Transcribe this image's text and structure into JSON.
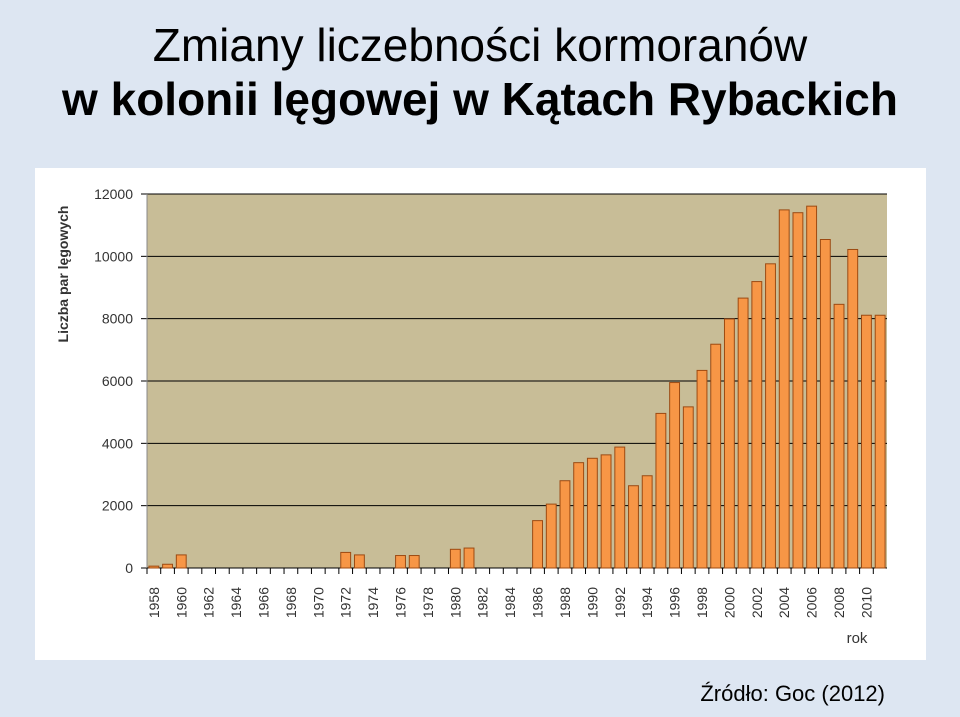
{
  "title": {
    "line1": "Zmiany liczebności kormoranów",
    "line2": "w kolonii lęgowej w Kątach Rybackich"
  },
  "source": "Źródło: Goc (2012)",
  "colors": {
    "background": "#dde6f2",
    "plot_area": "#c8bd97",
    "bar_fill": "#f79646",
    "bar_stroke": "#9c4a12",
    "grid": "#000000"
  },
  "chart_data": {
    "type": "bar",
    "ylabel": "Liczba par lęgowych",
    "xlabel": "rok",
    "ylim": [
      0,
      12000
    ],
    "yticks": [
      0,
      2000,
      4000,
      6000,
      8000,
      10000,
      12000
    ],
    "grid": "horizontal",
    "x": [
      1958,
      1959,
      1960,
      1961,
      1962,
      1963,
      1964,
      1965,
      1966,
      1967,
      1968,
      1969,
      1970,
      1971,
      1972,
      1973,
      1974,
      1975,
      1976,
      1977,
      1978,
      1979,
      1980,
      1981,
      1982,
      1983,
      1984,
      1985,
      1986,
      1987,
      1988,
      1989,
      1990,
      1991,
      1992,
      1993,
      1994,
      1995,
      1996,
      1997,
      1998,
      1999,
      2000,
      2001,
      2002,
      2003,
      2004,
      2005,
      2006,
      2007,
      2008,
      2009,
      2010,
      2011
    ],
    "values": [
      60,
      120,
      420,
      0,
      0,
      0,
      0,
      0,
      0,
      0,
      0,
      0,
      0,
      0,
      500,
      420,
      0,
      0,
      400,
      400,
      0,
      0,
      600,
      640,
      0,
      0,
      0,
      0,
      1520,
      2050,
      2800,
      3380,
      3520,
      3630,
      3880,
      2640,
      2960,
      4960,
      5950,
      5170,
      6340,
      7180,
      7990,
      8660,
      9190,
      9760,
      11490,
      11400,
      11610,
      10540,
      8460,
      10220,
      8110,
      8110
    ],
    "xtick_labels": [
      "1958",
      "1960",
      "1962",
      "1964",
      "1966",
      "1968",
      "1970",
      "1972",
      "1974",
      "1976",
      "1978",
      "1980",
      "1982",
      "1984",
      "1986",
      "1988",
      "1990",
      "1992",
      "1994",
      "1996",
      "1998",
      "2000",
      "2002",
      "2004",
      "2006",
      "2008",
      "2010"
    ]
  }
}
